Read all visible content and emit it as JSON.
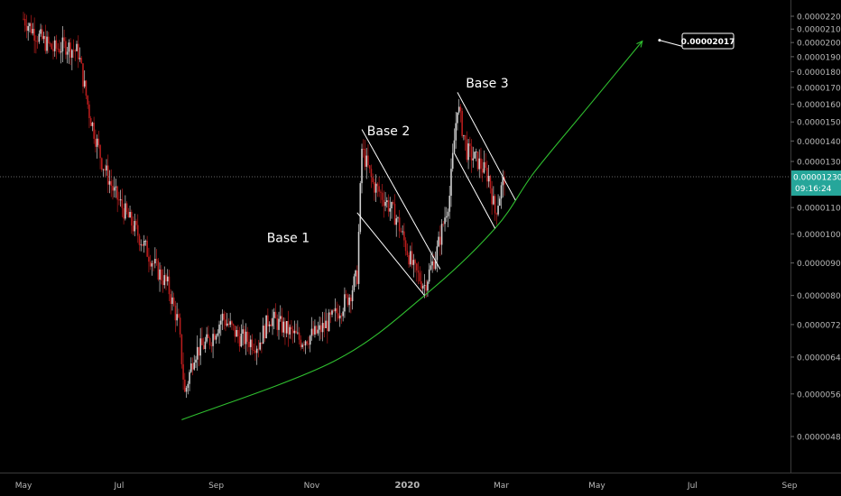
{
  "chart_data": {
    "type": "candlestick",
    "title": "",
    "xlabel": "",
    "ylabel": "",
    "x_ticks": [
      {
        "label": "May",
        "date": "2019-05-01"
      },
      {
        "label": "Jul",
        "date": "2019-07-01"
      },
      {
        "label": "Sep",
        "date": "2019-09-01"
      },
      {
        "label": "Nov",
        "date": "2019-11-01"
      },
      {
        "label": "2020",
        "date": "2020-01-01"
      },
      {
        "label": "Mar",
        "date": "2020-03-01"
      },
      {
        "label": "May",
        "date": "2020-05-01"
      },
      {
        "label": "Jul",
        "date": "2020-07-01"
      },
      {
        "label": "Sep",
        "date": "2020-09-01"
      }
    ],
    "y_scale": "log",
    "y_ticks": [
      "0.00002200",
      "0.00002100",
      "0.00002000",
      "0.00001900",
      "0.00001800",
      "0.00001700",
      "0.00001600",
      "0.00001500",
      "0.00001400",
      "0.00001300",
      "0.00001100",
      "0.00001000",
      "0.00000900",
      "0.00000800",
      "0.00000720",
      "0.00000640",
      "0.00000560",
      "0.00000480"
    ],
    "current_price": {
      "value": "0.00001230",
      "countdown": "09:16:24",
      "color": "#26a69a"
    },
    "target_label": {
      "value": "0.00002017",
      "date": "2020-06-10",
      "price": 2.017e-05
    },
    "candle_colors": {
      "up": "#cfcfcf",
      "down": "#b71c1c"
    },
    "price_path": [
      {
        "date": "2019-05-01",
        "price": 2.18e-05
      },
      {
        "date": "2019-05-10",
        "price": 2.05e-05
      },
      {
        "date": "2019-05-20",
        "price": 1.95e-05
      },
      {
        "date": "2019-05-28",
        "price": 1.98e-05
      },
      {
        "date": "2019-06-05",
        "price": 1.93e-05
      },
      {
        "date": "2019-06-12",
        "price": 1.55e-05
      },
      {
        "date": "2019-06-20",
        "price": 1.3e-05
      },
      {
        "date": "2019-06-28",
        "price": 1.16e-05
      },
      {
        "date": "2019-07-05",
        "price": 1.08e-05
      },
      {
        "date": "2019-07-15",
        "price": 9.8e-06
      },
      {
        "date": "2019-07-25",
        "price": 8.8e-06
      },
      {
        "date": "2019-08-01",
        "price": 8.3e-06
      },
      {
        "date": "2019-08-08",
        "price": 7.2e-06
      },
      {
        "date": "2019-08-12",
        "price": 5.6e-06
      },
      {
        "date": "2019-08-18",
        "price": 6.5e-06
      },
      {
        "date": "2019-08-28",
        "price": 6.8e-06
      },
      {
        "date": "2019-09-05",
        "price": 7.4e-06
      },
      {
        "date": "2019-09-15",
        "price": 6.9e-06
      },
      {
        "date": "2019-09-28",
        "price": 6.7e-06
      },
      {
        "date": "2019-10-05",
        "price": 7.4e-06
      },
      {
        "date": "2019-10-15",
        "price": 7.1e-06
      },
      {
        "date": "2019-10-25",
        "price": 6.8e-06
      },
      {
        "date": "2019-11-05",
        "price": 7e-06
      },
      {
        "date": "2019-11-15",
        "price": 7.4e-06
      },
      {
        "date": "2019-11-25",
        "price": 8e-06
      },
      {
        "date": "2019-11-30",
        "price": 8.6e-06
      },
      {
        "date": "2019-12-03",
        "price": 1.36e-05
      },
      {
        "date": "2019-12-10",
        "price": 1.2e-05
      },
      {
        "date": "2019-12-18",
        "price": 1.13e-05
      },
      {
        "date": "2019-12-25",
        "price": 1.06e-05
      },
      {
        "date": "2020-01-05",
        "price": 8.8e-06
      },
      {
        "date": "2020-01-12",
        "price": 8.3e-06
      },
      {
        "date": "2020-01-20",
        "price": 9.4e-06
      },
      {
        "date": "2020-01-28",
        "price": 1.15e-05
      },
      {
        "date": "2020-02-02",
        "price": 1.6e-05
      },
      {
        "date": "2020-02-08",
        "price": 1.35e-05
      },
      {
        "date": "2020-02-15",
        "price": 1.3e-05
      },
      {
        "date": "2020-02-22",
        "price": 1.23e-05
      },
      {
        "date": "2020-02-26",
        "price": 1.08e-05
      },
      {
        "date": "2020-03-03",
        "price": 1.23e-05
      }
    ],
    "annotations": [
      {
        "text": "Base 1",
        "date": "2019-10-17",
        "price": 9.7e-06
      },
      {
        "text": "Base 2",
        "date": "2019-12-20",
        "price": 1.43e-05
      },
      {
        "text": "Base 3",
        "date": "2020-02-21",
        "price": 1.7e-05
      }
    ],
    "curve": {
      "color": "#2fbf2f",
      "points": [
        {
          "date": "2019-08-10",
          "price": 5.1e-06
        },
        {
          "date": "2019-11-15",
          "price": 6.3e-06
        },
        {
          "date": "2020-01-12",
          "price": 8e-06
        },
        {
          "date": "2020-02-26",
          "price": 1.02e-05
        },
        {
          "date": "2020-03-22",
          "price": 1.25e-05
        },
        {
          "date": "2020-04-25",
          "price": 1.58e-05
        },
        {
          "date": "2020-05-30",
          "price": 2.01e-05
        }
      ]
    },
    "channels": [
      {
        "date1": "2019-12-03",
        "price1": 1.46e-05,
        "date2": "2020-01-22",
        "price2": 8.8e-06
      },
      {
        "date1": "2019-11-30",
        "price1": 1.08e-05,
        "date2": "2020-01-12",
        "price2": 8e-06
      },
      {
        "date1": "2020-02-02",
        "price1": 1.67e-05,
        "date2": "2020-03-10",
        "price2": 1.13e-05
      },
      {
        "date1": "2020-01-31",
        "price1": 1.34e-05,
        "date2": "2020-02-26",
        "price2": 1.02e-05
      }
    ]
  }
}
